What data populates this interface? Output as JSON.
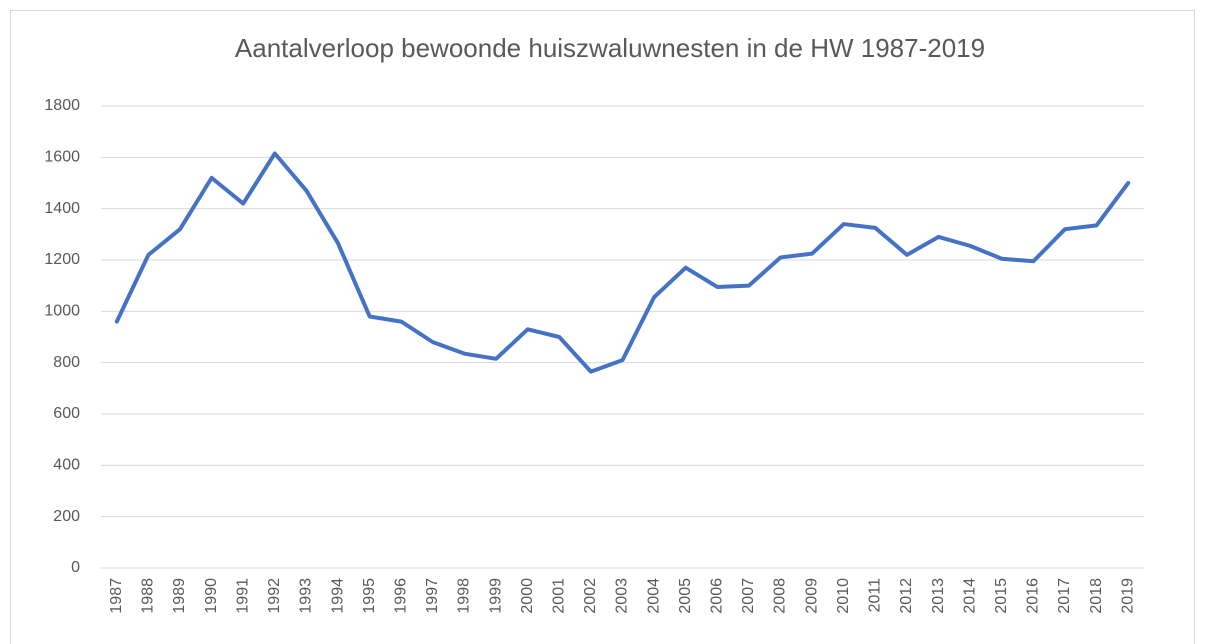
{
  "chart_data": {
    "type": "line",
    "title": "Aantalverloop bewoonde huiszwaluwnesten in de HW 1987-2019",
    "categories": [
      "1987",
      "1988",
      "1989",
      "1990",
      "1991",
      "1992",
      "1993",
      "1994",
      "1995",
      "1996",
      "1997",
      "1998",
      "1999",
      "2000",
      "2001",
      "2002",
      "2003",
      "2004",
      "2005",
      "2006",
      "2007",
      "2008",
      "2009",
      "2010",
      "2011",
      "2012",
      "2013",
      "2014",
      "2015",
      "2016",
      "2017",
      "2018",
      "2019"
    ],
    "series": [
      {
        "color": "#4472c4",
        "values": [
          960,
          1220,
          1320,
          1520,
          1420,
          1615,
          1470,
          1265,
          980,
          960,
          880,
          835,
          815,
          930,
          900,
          765,
          810,
          1055,
          1170,
          1095,
          1100,
          1210,
          1225,
          1340,
          1325,
          1220,
          1290,
          1255,
          1205,
          1195,
          1320,
          1335,
          1500
        ]
      }
    ],
    "ylim": [
      0,
      1800
    ],
    "yticks": [
      0,
      200,
      400,
      600,
      800,
      1000,
      1200,
      1400,
      1600,
      1800
    ],
    "grid": true
  }
}
